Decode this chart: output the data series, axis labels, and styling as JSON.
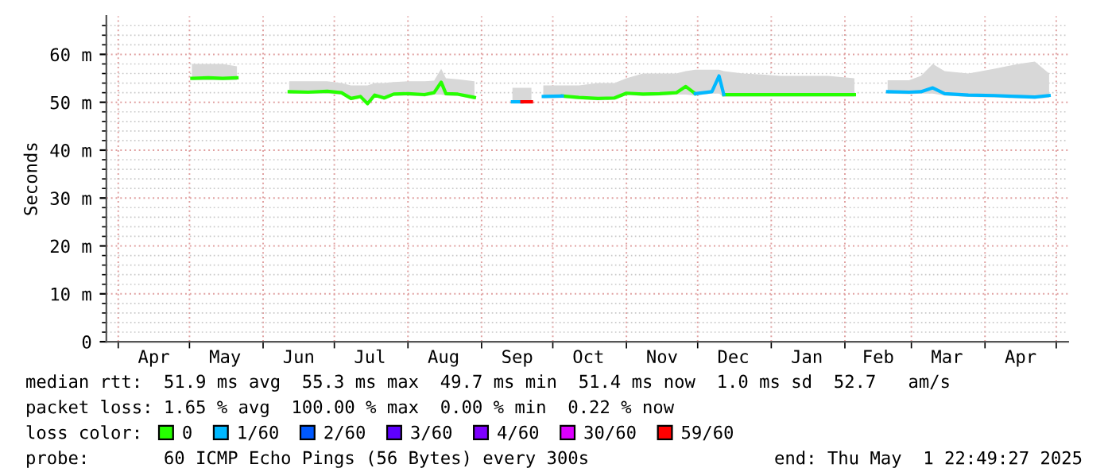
{
  "chart_data": {
    "type": "line",
    "ylabel": "Seconds",
    "xlim": [
      "2024-03-27",
      "2025-05-06"
    ],
    "ylim": [
      0,
      68
    ],
    "xticks": [
      {
        "value": "2024-04-01",
        "label": null
      },
      {
        "value": "2024-04-16",
        "label": "Apr"
      },
      {
        "value": "2024-05-01",
        "label": null
      },
      {
        "value": "2024-05-16",
        "label": "May"
      },
      {
        "value": "2024-06-01",
        "label": null
      },
      {
        "value": "2024-06-16",
        "label": "Jun"
      },
      {
        "value": "2024-07-01",
        "label": null
      },
      {
        "value": "2024-07-16",
        "label": "Jul"
      },
      {
        "value": "2024-08-01",
        "label": null
      },
      {
        "value": "2024-08-16",
        "label": "Aug"
      },
      {
        "value": "2024-09-01",
        "label": null
      },
      {
        "value": "2024-09-16",
        "label": "Sep"
      },
      {
        "value": "2024-10-01",
        "label": null
      },
      {
        "value": "2024-10-16",
        "label": "Oct"
      },
      {
        "value": "2024-11-01",
        "label": null
      },
      {
        "value": "2024-11-16",
        "label": "Nov"
      },
      {
        "value": "2024-12-01",
        "label": null
      },
      {
        "value": "2024-12-16",
        "label": "Dec"
      },
      {
        "value": "2025-01-01",
        "label": null
      },
      {
        "value": "2025-01-16",
        "label": "Jan"
      },
      {
        "value": "2025-02-01",
        "label": null
      },
      {
        "value": "2025-02-15",
        "label": "Feb"
      },
      {
        "value": "2025-03-01",
        "label": null
      },
      {
        "value": "2025-03-16",
        "label": "Mar"
      },
      {
        "value": "2025-04-01",
        "label": null
      },
      {
        "value": "2025-04-16",
        "label": "Apr"
      },
      {
        "value": "2025-05-01",
        "label": null
      }
    ],
    "yticks": [
      0,
      {
        "value": 2,
        "label": null
      },
      {
        "value": 4,
        "label": null
      },
      {
        "value": 6,
        "label": null
      },
      {
        "value": 8,
        "label": null
      },
      {
        "value": 10,
        "label": "10 m"
      },
      {
        "value": 12,
        "label": null
      },
      {
        "value": 14,
        "label": null
      },
      {
        "value": 16,
        "label": null
      },
      {
        "value": 18,
        "label": null
      },
      {
        "value": 20,
        "label": "20 m"
      },
      {
        "value": 22,
        "label": null
      },
      {
        "value": 24,
        "label": null
      },
      {
        "value": 26,
        "label": null
      },
      {
        "value": 28,
        "label": null
      },
      {
        "value": 30,
        "label": "30 m"
      },
      {
        "value": 32,
        "label": null
      },
      {
        "value": 34,
        "label": null
      },
      {
        "value": 36,
        "label": null
      },
      {
        "value": 38,
        "label": null
      },
      {
        "value": 40,
        "label": "40 m"
      },
      {
        "value": 42,
        "label": null
      },
      {
        "value": 44,
        "label": null
      },
      {
        "value": 46,
        "label": null
      },
      {
        "value": 48,
        "label": null
      },
      {
        "value": 50,
        "label": "50 m"
      },
      {
        "value": 52,
        "label": null
      },
      {
        "value": 54,
        "label": null
      },
      {
        "value": 56,
        "label": null
      },
      {
        "value": 58,
        "label": null
      },
      {
        "value": 60,
        "label": "60 m"
      },
      {
        "value": 62,
        "label": null
      },
      {
        "value": 64,
        "label": null
      },
      {
        "value": 66,
        "label": null
      }
    ],
    "grid": true,
    "legend": "bottom",
    "line_style": "solid",
    "marker": "none",
    "series": [
      {
        "name": "0",
        "color": "#26ff00",
        "x": [
          "2024-05-02",
          "2024-05-09",
          "2024-05-15",
          "2024-05-21",
          "2024-06-01",
          "2024-06-12",
          "2024-06-20",
          "2024-06-28",
          "2024-07-04",
          "2024-07-08",
          "2024-07-12",
          "2024-07-15",
          "2024-07-18",
          "2024-07-22",
          "2024-07-26",
          "2024-08-01",
          "2024-08-08",
          "2024-08-12",
          "2024-08-15",
          "2024-08-17",
          "2024-08-22",
          "2024-08-29",
          "2024-09-05",
          "2024-09-14",
          "2024-09-18",
          "2024-09-22",
          "2024-09-25",
          "2024-09-27",
          "2024-10-05",
          "2024-10-12",
          "2024-10-20",
          "2024-10-27",
          "2024-11-01",
          "2024-11-08",
          "2024-11-15",
          "2024-11-22",
          "2024-11-26",
          "2024-11-30",
          "2024-12-07",
          "2024-12-10",
          "2024-12-12",
          "2024-12-20",
          "2024-12-28",
          "2025-01-05",
          "2025-01-15",
          "2025-01-25",
          "2025-02-05",
          "2025-02-12",
          "2025-02-19",
          "2025-02-28",
          "2025-03-05",
          "2025-03-10",
          "2025-03-15",
          "2025-03-25",
          "2025-04-05",
          "2025-04-15",
          "2025-04-22",
          "2025-04-28"
        ],
        "values": [
          55.0,
          55.1,
          55.0,
          55.1,
          null,
          52.2,
          52.1,
          52.3,
          52.0,
          50.8,
          51.2,
          49.7,
          51.5,
          50.9,
          51.7,
          51.8,
          51.6,
          52.0,
          54.2,
          51.8,
          51.7,
          51.0,
          null,
          null,
          null,
          null,
          null,
          null,
          51.3,
          51.0,
          50.8,
          50.9,
          51.9,
          51.7,
          51.8,
          52.0,
          53.3,
          51.8,
          null,
          null,
          51.6,
          51.6,
          51.6,
          51.6,
          51.6,
          51.6,
          51.6,
          null,
          null,
          null,
          null,
          null,
          null,
          null,
          null,
          null,
          null,
          null
        ],
        "lower": [
          54.6,
          54.6,
          54.6,
          54.6,
          null,
          51.8,
          51.8,
          51.8,
          51.6,
          50.4,
          50.8,
          49.4,
          51.1,
          50.5,
          51.3,
          51.4,
          51.2,
          51.6,
          51.6,
          51.4,
          51.3,
          50.6,
          null,
          49.8,
          49.8,
          49.8,
          null,
          50.8,
          50.9,
          50.6,
          50.4,
          50.5,
          51.5,
          51.3,
          51.4,
          51.6,
          51.6,
          51.4,
          51.8,
          51.8,
          51.2,
          51.2,
          51.2,
          51.2,
          51.2,
          51.2,
          51.2,
          null,
          51.8,
          51.7,
          51.8,
          51.8,
          51.4,
          51.1,
          51.0,
          50.8,
          50.7,
          51.0
        ],
        "upper": [
          58.0,
          58.0,
          58.0,
          57.5,
          null,
          54.4,
          54.4,
          54.4,
          54.0,
          53.5,
          53.5,
          53.5,
          54.0,
          54.0,
          54.2,
          54.4,
          54.4,
          54.5,
          57.0,
          55.0,
          54.8,
          54.4,
          null,
          53.0,
          53.0,
          53.0,
          null,
          53.5,
          53.5,
          53.5,
          54.0,
          54.0,
          55.0,
          56.0,
          56.0,
          56.0,
          56.5,
          56.8,
          56.8,
          56.8,
          56.5,
          56.0,
          55.8,
          55.5,
          55.5,
          55.5,
          55.0,
          null,
          54.6,
          54.6,
          55.5,
          58.0,
          56.5,
          56.0,
          57.0,
          58.0,
          58.5,
          56.0
        ]
      },
      {
        "name": "1/60",
        "color": "#00b8ff",
        "x": [
          "2024-09-14",
          "2024-09-18",
          "2024-09-25",
          "2024-09-27",
          "2024-10-05",
          "2024-10-12",
          "2024-11-30",
          "2024-12-07",
          "2024-12-10",
          "2024-12-12",
          "2024-12-20",
          "2025-02-19",
          "2025-02-28",
          "2025-03-05",
          "2025-03-10",
          "2025-03-15",
          "2025-03-25",
          "2025-04-05",
          "2025-04-15",
          "2025-04-22",
          "2025-04-28"
        ],
        "values": [
          50.1,
          50.1,
          null,
          51.2,
          51.3,
          null,
          51.8,
          52.2,
          55.5,
          51.6,
          null,
          52.2,
          52.1,
          52.2,
          53.0,
          51.8,
          51.5,
          51.4,
          51.2,
          51.1,
          51.4
        ]
      },
      {
        "name": "2/60",
        "color": "#0059ff"
      },
      {
        "name": "3/60",
        "color": "#5e00ff"
      },
      {
        "name": "4/60",
        "color": "#7e00ff"
      },
      {
        "name": "30/60",
        "color": "#dd00ff"
      },
      {
        "name": "59/60",
        "color": "#ff0000",
        "x": [
          "2024-09-18",
          "2024-09-22"
        ],
        "values": [
          50.1,
          50.1
        ]
      }
    ],
    "annotations": [
      "median rtt:  51.9 ms avg  55.3 ms max  49.7 ms min  51.4 ms now  1.0 ms sd  52.7   am/s",
      "packet loss: 1.65 % avg  100.00 % max  0.00 % min  0.22 % now",
      "loss color:",
      "probe:       60 ICMP Echo Pings (56 Bytes) every 300s",
      "end: Thu May  1 22:49:27 2025"
    ]
  }
}
